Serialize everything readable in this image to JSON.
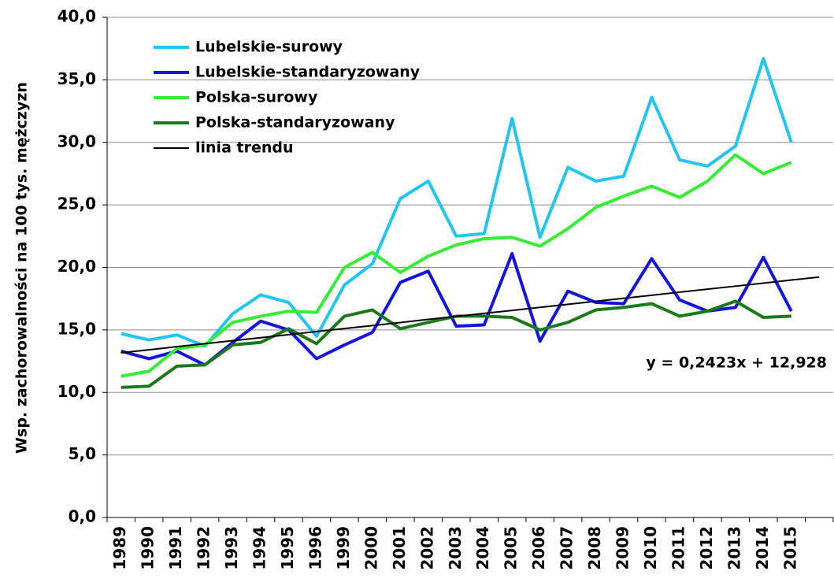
{
  "chart_data": {
    "type": "line",
    "y_label": "Wsp. zachorowalności na 100 tys. mężczyzn",
    "annotation": "y = 0,2423x + 12,928",
    "categories": [
      "1989",
      "1990",
      "1991",
      "1992",
      "1993",
      "1994",
      "1995",
      "1996",
      "1999",
      "2000",
      "2001",
      "2002",
      "2003",
      "2004",
      "2005",
      "2006",
      "2007",
      "2008",
      "2009",
      "2010",
      "2011",
      "2012",
      "2013",
      "2014",
      "2015",
      null
    ],
    "series": [
      {
        "name": "Lubelskie-surowy",
        "color": "#22c4f0",
        "values": [
          14.7,
          14.2,
          14.6,
          13.7,
          16.3,
          17.8,
          17.2,
          14.5,
          18.6,
          20.3,
          25.5,
          26.9,
          22.5,
          22.7,
          31.9,
          22.4,
          28.0,
          26.9,
          27.3,
          33.6,
          28.6,
          28.1,
          29.7,
          36.7,
          30.0,
          null
        ]
      },
      {
        "name": "Lubelskie-standaryzowany",
        "color": "#1414dc",
        "values": [
          13.3,
          12.7,
          13.3,
          12.2,
          14.0,
          15.7,
          15.0,
          12.7,
          13.8,
          14.8,
          18.8,
          19.7,
          15.3,
          15.4,
          21.1,
          14.1,
          18.1,
          17.2,
          17.1,
          20.7,
          17.4,
          16.5,
          16.8,
          20.8,
          16.5,
          null
        ]
      },
      {
        "name": "Polska-surowy",
        "color": "#33ee33",
        "values": [
          11.3,
          11.7,
          13.5,
          13.8,
          15.6,
          16.1,
          16.5,
          16.4,
          20.0,
          21.2,
          19.6,
          20.9,
          21.8,
          22.3,
          22.4,
          21.7,
          23.1,
          24.8,
          25.7,
          26.5,
          25.6,
          26.9,
          29.0,
          27.5,
          28.4,
          null
        ]
      },
      {
        "name": "Polska-standaryzowany",
        "color": "#1a7a1a",
        "values": [
          10.4,
          10.5,
          12.1,
          12.2,
          13.8,
          14.0,
          15.1,
          13.9,
          16.1,
          16.6,
          15.1,
          15.6,
          16.1,
          16.1,
          16.0,
          15.0,
          15.6,
          16.6,
          16.8,
          17.1,
          16.1,
          16.5,
          17.3,
          16.0,
          16.1,
          null
        ]
      },
      {
        "name": "linia trendu",
        "color": "#000000",
        "values": [
          13.17,
          13.41,
          13.66,
          13.9,
          14.14,
          14.38,
          14.62,
          14.87,
          15.11,
          15.35,
          15.59,
          15.84,
          16.08,
          16.32,
          16.56,
          16.8,
          17.05,
          17.29,
          17.53,
          17.77,
          18.02,
          18.26,
          18.5,
          18.74,
          18.99,
          19.23
        ]
      }
    ],
    "ylim": [
      0,
      40
    ],
    "yticks": [
      {
        "value": 0,
        "label": "0,0"
      },
      {
        "value": 5,
        "label": "5,0"
      },
      {
        "value": 10,
        "label": "10,0"
      },
      {
        "value": 15,
        "label": "15,0"
      },
      {
        "value": 20,
        "label": "20,0"
      },
      {
        "value": 25,
        "label": "25,0"
      },
      {
        "value": 30,
        "label": "30,0"
      },
      {
        "value": 35,
        "label": "35,0"
      },
      {
        "value": 40,
        "label": "40,0"
      }
    ],
    "grid": true,
    "legend": "top-left"
  }
}
